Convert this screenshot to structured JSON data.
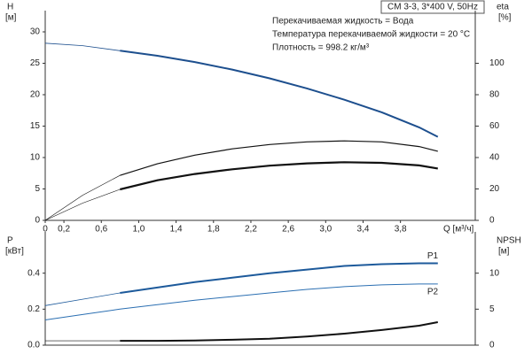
{
  "chart_data": [
    {
      "type": "line",
      "title": "CM 3-3, 3*400 V, 50Hz",
      "annotations": [
        "Перекачиваемая жидкость = Вода",
        "Температура перекачиваемой жидкости = 20 °C",
        "Плотность = 998.2 кг/м³"
      ],
      "xlabel": "Q [м³/ч]",
      "ylabel": "H",
      "yunit": "[м]",
      "y2label": "eta",
      "y2unit": "[%]",
      "x": [
        0,
        0.4,
        0.8,
        1.2,
        1.6,
        2.0,
        2.4,
        2.8,
        3.2,
        3.6,
        4.0,
        4.2
      ],
      "xlim": [
        0,
        4.6
      ],
      "xticks": [
        0,
        {
          "value": 0.2,
          "label": "0,2"
        },
        {
          "value": 0.6,
          "label": "0,6"
        },
        {
          "value": 1.0,
          "label": "1,0"
        },
        {
          "value": 1.4,
          "label": "1,4"
        },
        {
          "value": 1.8,
          "label": "1,8"
        },
        {
          "value": 2.2,
          "label": "2,2"
        },
        {
          "value": 2.6,
          "label": "2,6"
        },
        {
          "value": 3.0,
          "label": "3,0"
        },
        {
          "value": 3.4,
          "label": "3,4"
        },
        {
          "value": 3.8,
          "label": "3,8"
        }
      ],
      "ylim": [
        0,
        30
      ],
      "yticks": [
        0,
        5,
        10,
        15,
        20,
        25,
        30
      ],
      "y2lim": [
        0,
        120
      ],
      "y2ticks": [
        0,
        20,
        40,
        60,
        80,
        100
      ],
      "series": [
        {
          "color": "#1d4f8e",
          "width": 0.8,
          "values": [
            28.2,
            27.8,
            27.0,
            null,
            null,
            null,
            null,
            null,
            null,
            null,
            null,
            null
          ]
        },
        {
          "color": "#1d4f8e",
          "width": 2,
          "values": [
            null,
            null,
            27.0,
            26.2,
            25.2,
            24.0,
            22.6,
            21.0,
            19.2,
            17.2,
            14.8,
            13.3
          ]
        },
        {
          "color": "#111111",
          "width": 0.6,
          "axis": "y2",
          "values": [
            0,
            16,
            28.6,
            null,
            null,
            null,
            null,
            null,
            null,
            null,
            null,
            null
          ]
        },
        {
          "color": "#111111",
          "width": 1.2,
          "axis": "y2",
          "values": [
            null,
            null,
            28.6,
            36,
            41.5,
            45.5,
            48.3,
            50,
            50.6,
            50,
            47,
            44
          ]
        },
        {
          "color": "#111111",
          "width": 0.6,
          "axis": "y2",
          "values": [
            0,
            11,
            19.7,
            null,
            null,
            null,
            null,
            null,
            null,
            null,
            null,
            null
          ]
        },
        {
          "color": "#111111",
          "width": 2.2,
          "axis": "y2",
          "values": [
            null,
            null,
            19.7,
            25.5,
            29.5,
            32.5,
            34.8,
            36.3,
            37,
            36.6,
            35,
            33
          ]
        }
      ]
    },
    {
      "type": "line",
      "ylabel": "P",
      "yunit": "[кВт]",
      "y2label": "NPSH",
      "y2unit": "[м]",
      "x": [
        0,
        0.4,
        0.8,
        1.2,
        1.6,
        2.0,
        2.4,
        2.8,
        3.2,
        3.6,
        4.0,
        4.2
      ],
      "xlim": [
        0,
        4.6
      ],
      "ylim": [
        0,
        0.6
      ],
      "yticks": [
        {
          "value": 0,
          "label": "0.0"
        },
        0.2,
        0.4
      ],
      "y2lim": [
        0,
        15
      ],
      "y2ticks": [
        0,
        5,
        10
      ],
      "series": [
        {
          "color": "#1d5a9b",
          "width": 0.8,
          "values": [
            0.22,
            0.255,
            0.29,
            null,
            null,
            null,
            null,
            null,
            null,
            null,
            null,
            null
          ]
        },
        {
          "name": "P1",
          "color": "#1d5a9b",
          "width": 2,
          "values": [
            null,
            null,
            0.29,
            0.32,
            0.35,
            0.375,
            0.4,
            0.42,
            0.44,
            0.45,
            0.455,
            0.455
          ]
        },
        {
          "name": "P2",
          "color": "#2b6fb2",
          "width": 1,
          "values": [
            0.14,
            0.17,
            0.2,
            0.225,
            0.25,
            0.27,
            0.29,
            0.31,
            0.325,
            0.335,
            0.34,
            0.34
          ]
        },
        {
          "color": "#111111",
          "width": 0.6,
          "axis": "y2",
          "values": [
            0.6,
            0.6,
            0.6,
            null,
            null,
            null,
            null,
            null,
            null,
            null,
            null,
            null
          ]
        },
        {
          "color": "#111111",
          "width": 2,
          "axis": "y2",
          "values": [
            null,
            null,
            0.6,
            0.6,
            0.65,
            0.75,
            0.9,
            1.2,
            1.6,
            2.1,
            2.7,
            3.2
          ]
        }
      ]
    }
  ]
}
